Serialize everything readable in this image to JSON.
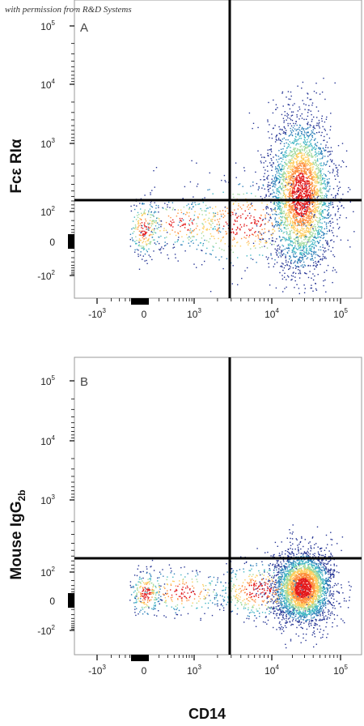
{
  "watermark": "with permission from R&D Systems",
  "chart_data": [
    {
      "type": "scatter",
      "panel_label": "A",
      "xlabel": "CD14",
      "ylabel": "Fcε RIα",
      "x_ticks": [
        "-10^3",
        "0",
        "10^3",
        "10^4",
        "10^5"
      ],
      "y_ticks": [
        "10^5",
        "10^4",
        "10^3",
        "10^2",
        "0",
        "-10^2"
      ],
      "x_scale": "biexponential",
      "y_scale": "biexponential",
      "quadrant_gate": {
        "x": 3000,
        "y": 150
      },
      "populations": [
        {
          "name": "main",
          "center": {
            "x": 28000,
            "y": 250
          },
          "events": 3200
        },
        {
          "name": "low",
          "center": {
            "x": 0,
            "y": 20
          },
          "events": 220
        }
      ],
      "grid": false,
      "colormap": "density (blue-green-yellow-red)"
    },
    {
      "type": "scatter",
      "panel_label": "B",
      "xlabel": "CD14",
      "ylabel": "Mouse IgG2b",
      "ylabel_main": "Mouse IgG",
      "ylabel_sub": "2b",
      "x_ticks": [
        "-10^3",
        "0",
        "10^3",
        "10^4",
        "10^5"
      ],
      "y_ticks": [
        "10^5",
        "10^4",
        "10^3",
        "10^2",
        "0",
        "-10^2"
      ],
      "x_scale": "biexponential",
      "y_scale": "biexponential",
      "quadrant_gate": {
        "x": 3000,
        "y": 150
      },
      "populations": [
        {
          "name": "main",
          "center": {
            "x": 28000,
            "y": 40
          },
          "events": 3200
        },
        {
          "name": "low",
          "center": {
            "x": 0,
            "y": 10
          },
          "events": 220
        }
      ],
      "grid": false,
      "colormap": "density (blue-green-yellow-red)"
    }
  ],
  "footer_xlabel": "CD14"
}
